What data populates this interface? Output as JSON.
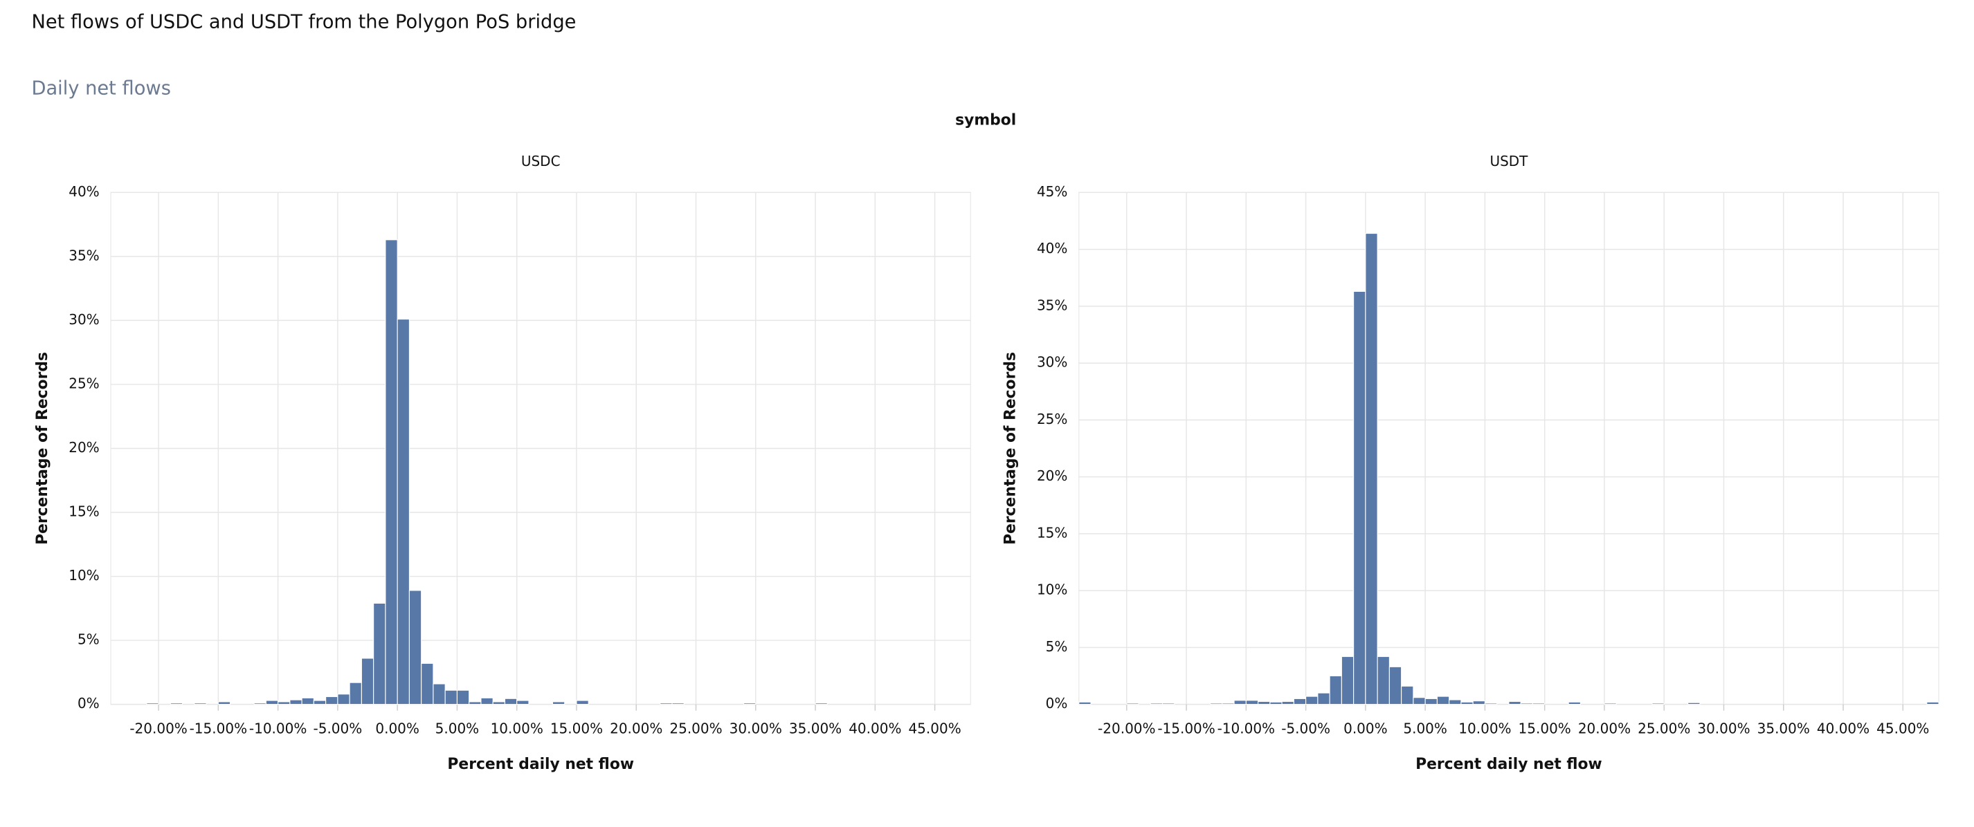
{
  "title": "Net flows of USDC and USDT from the Polygon PoS bridge",
  "subtitle": "Daily net flows",
  "facet_title": "symbol",
  "chart_data": [
    {
      "type": "histogram",
      "title": "USDC",
      "xlabel": "Percent daily net flow",
      "ylabel": "Percentage of Records",
      "color": "#5878a8",
      "grid": true,
      "bins": [
        -21,
        -20,
        -19,
        -18,
        -17,
        -16,
        -15,
        -14,
        -13,
        -12,
        -11,
        -10,
        -9,
        -8,
        -7,
        -6,
        -5,
        -4,
        -3,
        -2,
        -1,
        0,
        1,
        2,
        3,
        4,
        5,
        6,
        7,
        8,
        9,
        10,
        11,
        12,
        13,
        14,
        15,
        16,
        17,
        18,
        19,
        20,
        21,
        22,
        23,
        24,
        25,
        26,
        27,
        28,
        29,
        30,
        31,
        32,
        33,
        34,
        35,
        36
      ],
      "values": [
        0.1,
        0,
        0.1,
        0,
        0.1,
        0,
        0.2,
        0,
        0,
        0.1,
        0.3,
        0.2,
        0.35,
        0.5,
        0.3,
        0.6,
        0.8,
        1.7,
        3.6,
        7.9,
        36.3,
        30.1,
        8.9,
        3.2,
        1.6,
        1.1,
        1.1,
        0.2,
        0.5,
        0.2,
        0.45,
        0.3,
        0,
        0,
        0.2,
        0,
        0.3,
        0,
        0,
        0,
        0,
        0,
        0,
        0.1,
        0.1,
        0,
        0,
        0,
        0,
        0,
        0.1,
        0,
        0,
        0,
        0,
        0,
        0.1
      ],
      "xlim": [
        -24,
        48
      ],
      "ylim": [
        0,
        40
      ],
      "xticks": [
        {
          "value": -20,
          "label": "-20.00%"
        },
        {
          "value": -15,
          "label": "-15.00%"
        },
        {
          "value": -10,
          "label": "-10.00%"
        },
        {
          "value": -5,
          "label": "-5.00%"
        },
        {
          "value": 0,
          "label": "0.00%"
        },
        {
          "value": 5,
          "label": "5.00%"
        },
        {
          "value": 10,
          "label": "10.00%"
        },
        {
          "value": 15,
          "label": "15.00%"
        },
        {
          "value": 20,
          "label": "20.00%"
        },
        {
          "value": 25,
          "label": "25.00%"
        },
        {
          "value": 30,
          "label": "30.00%"
        },
        {
          "value": 35,
          "label": "35.00%"
        },
        {
          "value": 40,
          "label": "40.00%"
        },
        {
          "value": 45,
          "label": "45.00%"
        }
      ],
      "yticks": [
        {
          "value": 0,
          "label": "0%"
        },
        {
          "value": 5,
          "label": "5%"
        },
        {
          "value": 10,
          "label": "10%"
        },
        {
          "value": 15,
          "label": "15%"
        },
        {
          "value": 20,
          "label": "20%"
        },
        {
          "value": 25,
          "label": "25%"
        },
        {
          "value": 30,
          "label": "30%"
        },
        {
          "value": 35,
          "label": "35%"
        },
        {
          "value": 40,
          "label": "40%"
        }
      ]
    },
    {
      "type": "histogram",
      "title": "USDT",
      "xlabel": "Percent daily net flow",
      "ylabel": "Percentage of Records",
      "color": "#5878a8",
      "grid": true,
      "bins": [
        -24,
        -23,
        -22,
        -21,
        -20,
        -19,
        -18,
        -17,
        -16,
        -15,
        -14,
        -13,
        -12,
        -11,
        -10,
        -9,
        -8,
        -7,
        -6,
        -5,
        -4,
        -3,
        -2,
        -1,
        0,
        1,
        2,
        3,
        4,
        5,
        6,
        7,
        8,
        9,
        10,
        11,
        12,
        13,
        14,
        15,
        16,
        17,
        18,
        19,
        20,
        21,
        22,
        23,
        24,
        25,
        26,
        27,
        28,
        29,
        30,
        31,
        32,
        33,
        34,
        35,
        36,
        37,
        38,
        39,
        40,
        41,
        42,
        43,
        44,
        45,
        46,
        47,
        48
      ],
      "values": [
        0.2,
        0,
        0,
        0,
        0.1,
        0,
        0.1,
        0.1,
        0,
        0,
        0,
        0.1,
        0.1,
        0.35,
        0.35,
        0.25,
        0.2,
        0.25,
        0.5,
        0.7,
        1.0,
        2.5,
        4.2,
        36.3,
        41.4,
        4.2,
        3.3,
        1.6,
        0.6,
        0.5,
        0.7,
        0.4,
        0.2,
        0.3,
        0.1,
        0,
        0.25,
        0.1,
        0.1,
        0,
        0,
        0.2,
        0,
        0,
        0.1,
        0,
        0,
        0,
        0.1,
        0,
        0,
        0.15,
        0,
        0,
        0,
        0,
        0,
        0,
        0,
        0,
        0,
        0,
        0,
        0,
        0,
        0,
        0,
        0,
        0,
        0,
        0,
        0.2
      ],
      "xlim": [
        -24,
        48
      ],
      "ylim": [
        0,
        45
      ],
      "xticks": [
        {
          "value": -20,
          "label": "-20.00%"
        },
        {
          "value": -15,
          "label": "-15.00%"
        },
        {
          "value": -10,
          "label": "-10.00%"
        },
        {
          "value": -5,
          "label": "-5.00%"
        },
        {
          "value": 0,
          "label": "0.00%"
        },
        {
          "value": 5,
          "label": "5.00%"
        },
        {
          "value": 10,
          "label": "10.00%"
        },
        {
          "value": 15,
          "label": "15.00%"
        },
        {
          "value": 20,
          "label": "20.00%"
        },
        {
          "value": 25,
          "label": "25.00%"
        },
        {
          "value": 30,
          "label": "30.00%"
        },
        {
          "value": 35,
          "label": "35.00%"
        },
        {
          "value": 40,
          "label": "40.00%"
        },
        {
          "value": 45,
          "label": "45.00%"
        }
      ],
      "yticks": [
        {
          "value": 0,
          "label": "0%"
        },
        {
          "value": 5,
          "label": "5%"
        },
        {
          "value": 10,
          "label": "10%"
        },
        {
          "value": 15,
          "label": "15%"
        },
        {
          "value": 20,
          "label": "20%"
        },
        {
          "value": 25,
          "label": "25%"
        },
        {
          "value": 30,
          "label": "30%"
        },
        {
          "value": 35,
          "label": "35%"
        },
        {
          "value": 40,
          "label": "40%"
        },
        {
          "value": 45,
          "label": "45%"
        }
      ]
    }
  ]
}
